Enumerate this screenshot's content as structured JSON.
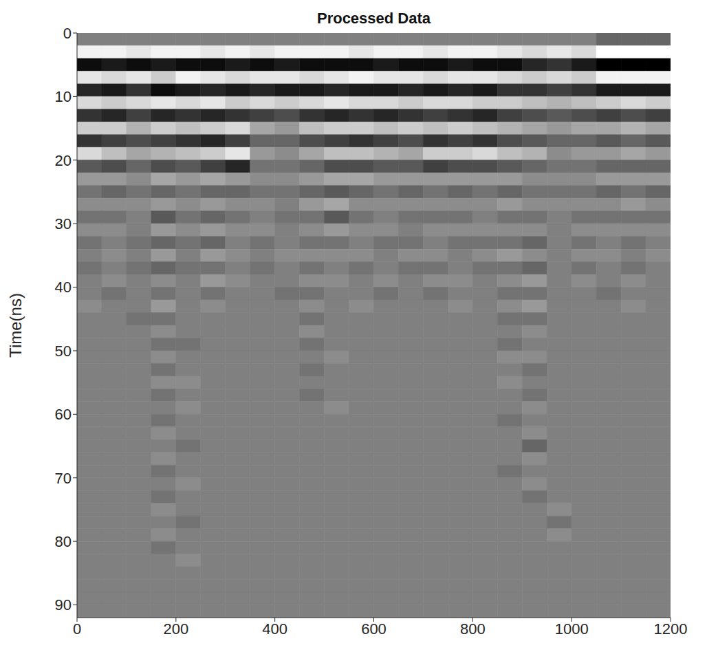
{
  "chart_data": {
    "type": "heatmap",
    "title": "Processed Data",
    "y_label": "Time(ns)",
    "x": [
      25,
      75,
      125,
      175,
      225,
      275,
      325,
      375,
      425,
      475,
      525,
      575,
      625,
      675,
      725,
      775,
      825,
      875,
      925,
      975,
      1025,
      1075,
      1125,
      1175
    ],
    "y": [
      1,
      3,
      5,
      7,
      9,
      11,
      13,
      15,
      17,
      19,
      21,
      23,
      25,
      27,
      29,
      31,
      33,
      35,
      37,
      39,
      41,
      43,
      45,
      47,
      49,
      51,
      53,
      55,
      57,
      59,
      61,
      63,
      65,
      67,
      69,
      71,
      73,
      75,
      77,
      79,
      81,
      83,
      85,
      87,
      89,
      91
    ],
    "cells": [
      [
        0,
        0,
        0,
        0,
        0,
        0,
        0,
        0,
        0,
        0,
        0,
        0,
        0,
        0,
        0,
        0,
        0,
        0,
        0,
        0,
        0,
        -2,
        -2,
        -2
      ],
      [
        9,
        9,
        8,
        9,
        9,
        8,
        9,
        8,
        9,
        9,
        9,
        8,
        9,
        9,
        8,
        9,
        9,
        8,
        7,
        8,
        7,
        10,
        10,
        10
      ],
      [
        -9,
        -8,
        -9,
        -8,
        -9,
        -9,
        -8,
        -9,
        -8,
        -9,
        -9,
        -9,
        -8,
        -9,
        -9,
        -8,
        -9,
        -9,
        -7,
        -6,
        -8,
        -10,
        -10,
        -10
      ],
      [
        8,
        7,
        8,
        6,
        9,
        8,
        7,
        8,
        8,
        7,
        8,
        9,
        8,
        8,
        7,
        8,
        8,
        7,
        6,
        7,
        6,
        9,
        9,
        9
      ],
      [
        -7,
        -8,
        -6,
        -9,
        -8,
        -7,
        -8,
        -7,
        -8,
        -8,
        -7,
        -8,
        -8,
        -7,
        -8,
        -7,
        -8,
        -6,
        -6,
        -5,
        -6,
        -8,
        -8,
        -8
      ],
      [
        7,
        6,
        7,
        8,
        7,
        8,
        6,
        7,
        6,
        7,
        8,
        7,
        7,
        6,
        7,
        7,
        6,
        6,
        5,
        4,
        5,
        6,
        7,
        6
      ],
      [
        -6,
        -7,
        -5,
        -7,
        -6,
        -7,
        -6,
        -5,
        -4,
        -6,
        -7,
        -6,
        -7,
        -6,
        -5,
        -6,
        -7,
        -5,
        -4,
        -3,
        -4,
        -5,
        -4,
        -5
      ],
      [
        6,
        6,
        4,
        6,
        5,
        6,
        7,
        3,
        2,
        5,
        6,
        6,
        5,
        6,
        5,
        6,
        5,
        4,
        3,
        2,
        3,
        3,
        4,
        3
      ],
      [
        -6,
        -5,
        -4,
        -5,
        -6,
        -7,
        -5,
        -2,
        -2,
        -4,
        -5,
        -6,
        -5,
        -4,
        -6,
        -5,
        -6,
        -4,
        -3,
        -2,
        -2,
        -3,
        -2,
        -3
      ],
      [
        7,
        5,
        3,
        4,
        5,
        6,
        8,
        2,
        1,
        3,
        5,
        5,
        4,
        3,
        6,
        6,
        7,
        5,
        4,
        1,
        2,
        2,
        3,
        2
      ],
      [
        -3,
        -4,
        -2,
        -4,
        -3,
        -5,
        -7,
        -1,
        -1,
        -2,
        -4,
        -4,
        -3,
        -3,
        -5,
        -4,
        -4,
        -3,
        -2,
        -1,
        -1,
        -2,
        -2,
        -2
      ],
      [
        2,
        2,
        1,
        3,
        2,
        3,
        2,
        1,
        1,
        2,
        3,
        3,
        2,
        2,
        2,
        2,
        2,
        2,
        1,
        1,
        1,
        2,
        2,
        2
      ],
      [
        -1,
        -2,
        -1,
        -2,
        -1,
        -2,
        -2,
        -1,
        -1,
        -2,
        -3,
        -2,
        -1,
        -2,
        -1,
        -2,
        -1,
        -2,
        -1,
        -1,
        -1,
        -2,
        -1,
        -2
      ],
      [
        1,
        1,
        1,
        2,
        1,
        2,
        1,
        1,
        0,
        2,
        3,
        1,
        1,
        1,
        1,
        1,
        1,
        2,
        1,
        1,
        1,
        1,
        2,
        1
      ],
      [
        -1,
        -1,
        0,
        -3,
        -1,
        -2,
        -1,
        0,
        -1,
        -1,
        -3,
        -1,
        0,
        -1,
        -1,
        -1,
        0,
        -1,
        -1,
        0,
        -1,
        -1,
        -1,
        -1
      ],
      [
        1,
        1,
        0,
        2,
        1,
        2,
        1,
        1,
        0,
        1,
        2,
        1,
        1,
        0,
        1,
        1,
        1,
        1,
        1,
        0,
        1,
        1,
        1,
        1
      ],
      [
        -1,
        0,
        -1,
        -2,
        -1,
        -2,
        0,
        -1,
        0,
        -1,
        -1,
        0,
        -1,
        -1,
        0,
        -1,
        -1,
        -1,
        -2,
        0,
        -1,
        0,
        -1,
        0
      ],
      [
        0,
        1,
        0,
        2,
        0,
        2,
        1,
        0,
        1,
        1,
        1,
        1,
        0,
        1,
        1,
        0,
        1,
        2,
        1,
        0,
        1,
        1,
        0,
        1
      ],
      [
        -1,
        0,
        -1,
        -2,
        -1,
        -1,
        0,
        -1,
        0,
        -1,
        0,
        -1,
        0,
        -1,
        -1,
        0,
        -1,
        -1,
        -2,
        0,
        -1,
        0,
        -1,
        0
      ],
      [
        0,
        1,
        0,
        1,
        0,
        2,
        1,
        0,
        0,
        1,
        1,
        0,
        1,
        0,
        1,
        1,
        0,
        1,
        2,
        0,
        1,
        0,
        1,
        0
      ],
      [
        0,
        -1,
        0,
        -1,
        0,
        -1,
        0,
        0,
        -1,
        -1,
        0,
        0,
        -1,
        0,
        -1,
        0,
        0,
        -1,
        -1,
        0,
        0,
        -1,
        0,
        0
      ],
      [
        1,
        0,
        0,
        2,
        0,
        1,
        0,
        0,
        0,
        1,
        0,
        1,
        0,
        0,
        0,
        1,
        0,
        1,
        2,
        0,
        0,
        0,
        1,
        0
      ],
      [
        0,
        0,
        -1,
        -1,
        0,
        0,
        0,
        0,
        0,
        -1,
        0,
        0,
        0,
        0,
        0,
        0,
        0,
        -1,
        -1,
        0,
        0,
        0,
        0,
        0
      ],
      [
        0,
        0,
        0,
        1,
        0,
        0,
        0,
        0,
        0,
        1,
        0,
        0,
        0,
        0,
        0,
        0,
        0,
        0,
        1,
        0,
        0,
        0,
        0,
        0
      ],
      [
        0,
        0,
        0,
        -1,
        -1,
        0,
        0,
        0,
        0,
        -1,
        0,
        0,
        0,
        0,
        0,
        0,
        0,
        -1,
        0,
        0,
        0,
        0,
        0,
        0
      ],
      [
        0,
        0,
        0,
        1,
        0,
        0,
        0,
        0,
        0,
        0,
        1,
        0,
        0,
        0,
        0,
        0,
        0,
        1,
        1,
        0,
        0,
        0,
        0,
        0
      ],
      [
        0,
        0,
        0,
        -1,
        0,
        0,
        0,
        0,
        0,
        -1,
        0,
        0,
        0,
        0,
        0,
        0,
        0,
        0,
        -1,
        0,
        0,
        0,
        0,
        0
      ],
      [
        0,
        0,
        0,
        1,
        1,
        0,
        0,
        0,
        0,
        0,
        0,
        0,
        0,
        0,
        0,
        0,
        0,
        1,
        0,
        0,
        0,
        0,
        0,
        0
      ],
      [
        0,
        0,
        0,
        -1,
        0,
        0,
        0,
        0,
        0,
        -1,
        0,
        0,
        0,
        0,
        0,
        0,
        0,
        0,
        -1,
        0,
        0,
        0,
        0,
        0
      ],
      [
        0,
        0,
        0,
        0,
        1,
        0,
        0,
        0,
        0,
        0,
        1,
        0,
        0,
        0,
        0,
        0,
        0,
        0,
        1,
        0,
        0,
        0,
        0,
        0
      ],
      [
        0,
        0,
        0,
        -1,
        0,
        0,
        0,
        0,
        0,
        0,
        0,
        0,
        0,
        0,
        0,
        0,
        0,
        -1,
        0,
        0,
        0,
        0,
        0,
        0
      ],
      [
        0,
        0,
        0,
        1,
        0,
        0,
        0,
        0,
        0,
        0,
        0,
        0,
        0,
        0,
        0,
        0,
        0,
        0,
        1,
        0,
        0,
        0,
        0,
        0
      ],
      [
        0,
        0,
        0,
        0,
        -1,
        0,
        0,
        0,
        0,
        0,
        0,
        0,
        0,
        0,
        0,
        0,
        0,
        0,
        -2,
        0,
        0,
        0,
        0,
        0
      ],
      [
        0,
        0,
        0,
        1,
        0,
        0,
        0,
        0,
        0,
        0,
        0,
        0,
        0,
        0,
        0,
        0,
        0,
        0,
        1,
        0,
        0,
        0,
        0,
        0
      ],
      [
        0,
        0,
        0,
        -1,
        0,
        0,
        0,
        0,
        0,
        0,
        0,
        0,
        0,
        0,
        0,
        0,
        0,
        -1,
        0,
        0,
        0,
        0,
        0,
        0
      ],
      [
        0,
        0,
        0,
        0,
        1,
        0,
        0,
        0,
        0,
        0,
        0,
        0,
        0,
        0,
        0,
        0,
        0,
        0,
        1,
        0,
        0,
        0,
        0,
        0
      ],
      [
        0,
        0,
        0,
        -1,
        0,
        0,
        0,
        0,
        0,
        0,
        0,
        0,
        0,
        0,
        0,
        0,
        0,
        0,
        -1,
        0,
        0,
        0,
        0,
        0
      ],
      [
        0,
        0,
        0,
        1,
        0,
        0,
        0,
        0,
        0,
        0,
        0,
        0,
        0,
        0,
        0,
        0,
        0,
        0,
        0,
        1,
        0,
        0,
        0,
        0
      ],
      [
        0,
        0,
        0,
        0,
        -1,
        0,
        0,
        0,
        0,
        0,
        0,
        0,
        0,
        0,
        0,
        0,
        0,
        0,
        0,
        -1,
        0,
        0,
        0,
        0
      ],
      [
        0,
        0,
        0,
        1,
        0,
        0,
        0,
        0,
        0,
        0,
        0,
        0,
        0,
        0,
        0,
        0,
        0,
        0,
        0,
        1,
        0,
        0,
        0,
        0
      ],
      [
        0,
        0,
        0,
        -1,
        0,
        0,
        0,
        0,
        0,
        0,
        0,
        0,
        0,
        0,
        0,
        0,
        0,
        0,
        0,
        0,
        0,
        0,
        0,
        0
      ],
      [
        0,
        0,
        0,
        0,
        1,
        0,
        0,
        0,
        0,
        0,
        0,
        0,
        0,
        0,
        0,
        0,
        0,
        0,
        0,
        0,
        0,
        0,
        0,
        0
      ],
      [
        0,
        0,
        0,
        0,
        0,
        0,
        0,
        0,
        0,
        0,
        0,
        0,
        0,
        0,
        0,
        0,
        0,
        0,
        0,
        0,
        0,
        0,
        0,
        0
      ],
      [
        0,
        0,
        0,
        0,
        0,
        0,
        0,
        0,
        0,
        0,
        0,
        0,
        0,
        0,
        0,
        0,
        0,
        0,
        0,
        0,
        0,
        0,
        0,
        0
      ],
      [
        0,
        0,
        0,
        0,
        0,
        0,
        0,
        0,
        0,
        0,
        0,
        0,
        0,
        0,
        0,
        0,
        0,
        0,
        0,
        0,
        0,
        0,
        0,
        0
      ],
      [
        0,
        0,
        0,
        0,
        0,
        0,
        0,
        0,
        0,
        0,
        0,
        0,
        0,
        0,
        0,
        0,
        0,
        0,
        0,
        0,
        0,
        0,
        0,
        0
      ]
    ],
    "zlim": [
      -10,
      10
    ],
    "xlim": [
      0,
      1200
    ],
    "xticks": [
      0,
      200,
      400,
      600,
      800,
      1000,
      1200
    ],
    "ylim": [
      0,
      92
    ],
    "yticks": [
      0,
      10,
      20,
      30,
      40,
      50,
      60,
      70,
      80,
      90
    ]
  }
}
